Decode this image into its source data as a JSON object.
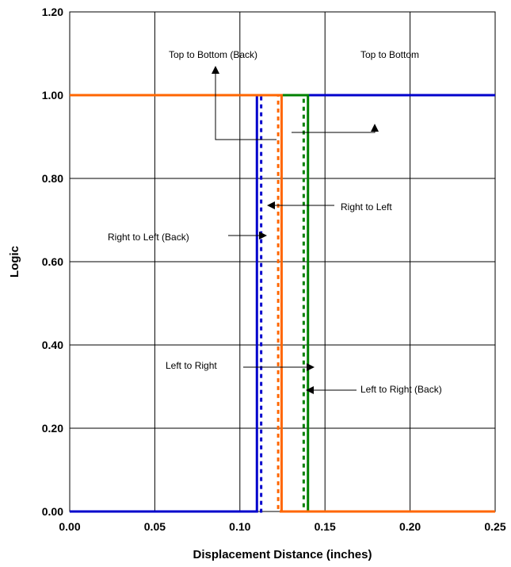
{
  "chart_data": {
    "type": "line",
    "xlabel": "Displacement Distance (inches)",
    "ylabel": "Logic",
    "xlim": [
      0.0,
      0.25
    ],
    "ylim": [
      0.0,
      1.2
    ],
    "x_ticks": [
      "0.00",
      "0.05",
      "0.10",
      "0.15",
      "0.20",
      "0.25"
    ],
    "y_ticks": [
      "0.00",
      "0.20",
      "0.40",
      "0.60",
      "0.80",
      "1.00",
      "1.20"
    ],
    "grid": true,
    "legend": "none",
    "series": [
      {
        "name": "Left to Right",
        "color": "#0000CC",
        "style": "solid",
        "x": [
          0.0,
          0.11,
          0.11,
          0.25
        ],
        "y": [
          0,
          0,
          1,
          1
        ]
      },
      {
        "name": "Left to Right (Back)",
        "color": "#008000",
        "style": "solid",
        "x": [
          0.0,
          0.14,
          0.14,
          0.25
        ],
        "y": [
          1,
          1,
          0,
          0
        ]
      },
      {
        "name": "Right to Left",
        "color": "#0000CC",
        "style": "dotted",
        "x": [
          0.0,
          0.1125,
          0.1125,
          0.25
        ],
        "y": [
          0,
          0,
          1,
          1
        ]
      },
      {
        "name": "Right to Left (Back)",
        "color": "#008000",
        "style": "dotted",
        "x": [
          0.0,
          0.1375,
          0.1375,
          0.25
        ],
        "y": [
          1,
          1,
          0,
          0
        ]
      },
      {
        "name": "Top to Bottom",
        "color": "#FF6600",
        "style": "solid",
        "x": [
          0.0,
          0.1245,
          0.1245,
          0.25
        ],
        "y": [
          1,
          1,
          0,
          0
        ]
      },
      {
        "name": "Top to Bottom (Back)",
        "color": "#FF6600",
        "style": "dotted",
        "x": [
          0.0,
          0.1225,
          0.1225,
          0.25
        ],
        "y": [
          1,
          1,
          0,
          0
        ]
      }
    ],
    "annotations": [
      {
        "text": "Top to Bottom (Back)",
        "arrow": true
      },
      {
        "text": "Top to Bottom",
        "arrow": true
      },
      {
        "text": "Right to Left",
        "arrow": true
      },
      {
        "text": "Right to Left  (Back)",
        "arrow": true
      },
      {
        "text": "Left to Right",
        "arrow": true
      },
      {
        "text": "Left to Right (Back)",
        "arrow": true
      }
    ]
  }
}
